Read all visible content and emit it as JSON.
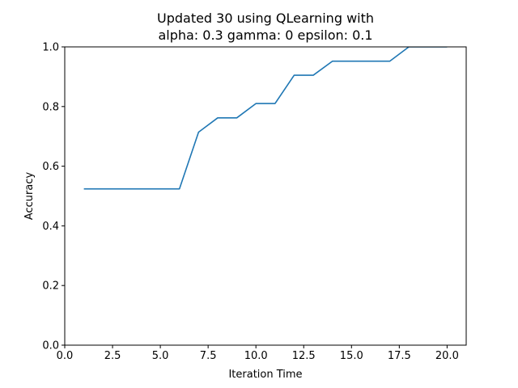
{
  "chart_data": {
    "type": "line",
    "title_line1": "Updated 30 using QLearning with",
    "title_line2": "alpha: 0.3 gamma: 0 epsilon: 0.1",
    "xlabel": "Iteration Time",
    "ylabel": "Accuracy",
    "xlim": [
      0.0,
      21.0
    ],
    "ylim": [
      0.0,
      1.0
    ],
    "x_ticks": [
      0.0,
      2.5,
      5.0,
      7.5,
      10.0,
      12.5,
      15.0,
      17.5,
      20.0
    ],
    "x_tick_labels": [
      "0.0",
      "2.5",
      "5.0",
      "7.5",
      "10.0",
      "12.5",
      "15.0",
      "17.5",
      "20.0"
    ],
    "y_ticks": [
      0.0,
      0.2,
      0.4,
      0.6,
      0.8,
      1.0
    ],
    "y_tick_labels": [
      "0.0",
      "0.2",
      "0.4",
      "0.6",
      "0.8",
      "1.0"
    ],
    "grid": false,
    "series": [
      {
        "color": "#1f77b4",
        "x": [
          1,
          2,
          3,
          4,
          5,
          6,
          7,
          8,
          9,
          10,
          11,
          12,
          13,
          14,
          15,
          16,
          17,
          18,
          19,
          20
        ],
        "y": [
          0.524,
          0.524,
          0.524,
          0.524,
          0.524,
          0.524,
          0.714,
          0.762,
          0.762,
          0.81,
          0.81,
          0.905,
          0.905,
          0.952,
          0.952,
          0.952,
          0.952,
          1.0,
          1.0,
          1.0
        ]
      }
    ]
  }
}
